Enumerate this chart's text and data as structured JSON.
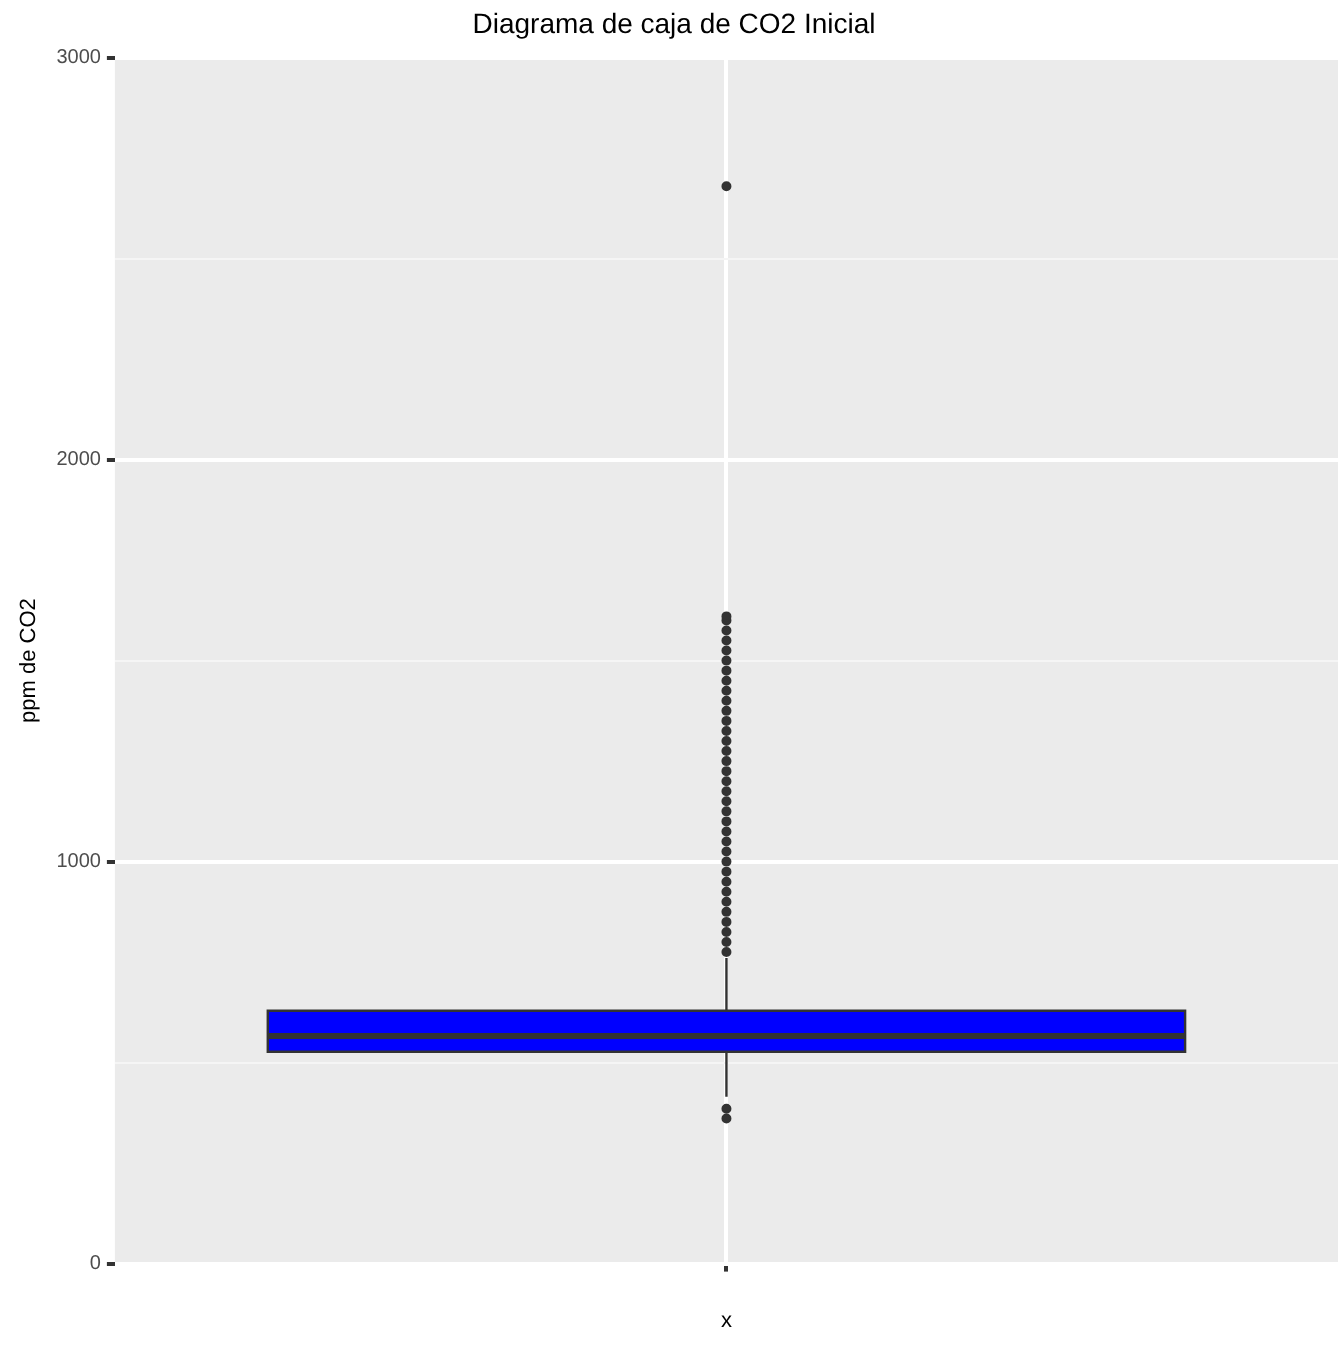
{
  "chart_data": {
    "type": "box",
    "title": "Diagrama de caja de CO2 Inicial",
    "xlabel": "x",
    "ylabel": "ppm de CO2",
    "categories": [
      null
    ],
    "boxes": [
      {
        "low": 415,
        "q1": 527,
        "median": 566,
        "q3": 629,
        "high": 760,
        "outliers": [
          361,
          385,
          775,
          800,
          825,
          850,
          875,
          900,
          925,
          950,
          975,
          1000,
          1025,
          1050,
          1075,
          1100,
          1125,
          1150,
          1175,
          1200,
          1225,
          1250,
          1275,
          1300,
          1325,
          1350,
          1375,
          1400,
          1425,
          1450,
          1475,
          1500,
          1525,
          1550,
          1575,
          1600,
          1610,
          2680
        ]
      }
    ],
    "color": "#0000ff",
    "ylim": [
      0,
      3000
    ],
    "yticks": [
      0,
      {
        "value": 500,
        "label": null
      },
      1000,
      {
        "value": 1500,
        "label": null
      },
      2000,
      {
        "value": 2500,
        "label": null
      },
      3000
    ],
    "grid": true,
    "legend": false
  }
}
